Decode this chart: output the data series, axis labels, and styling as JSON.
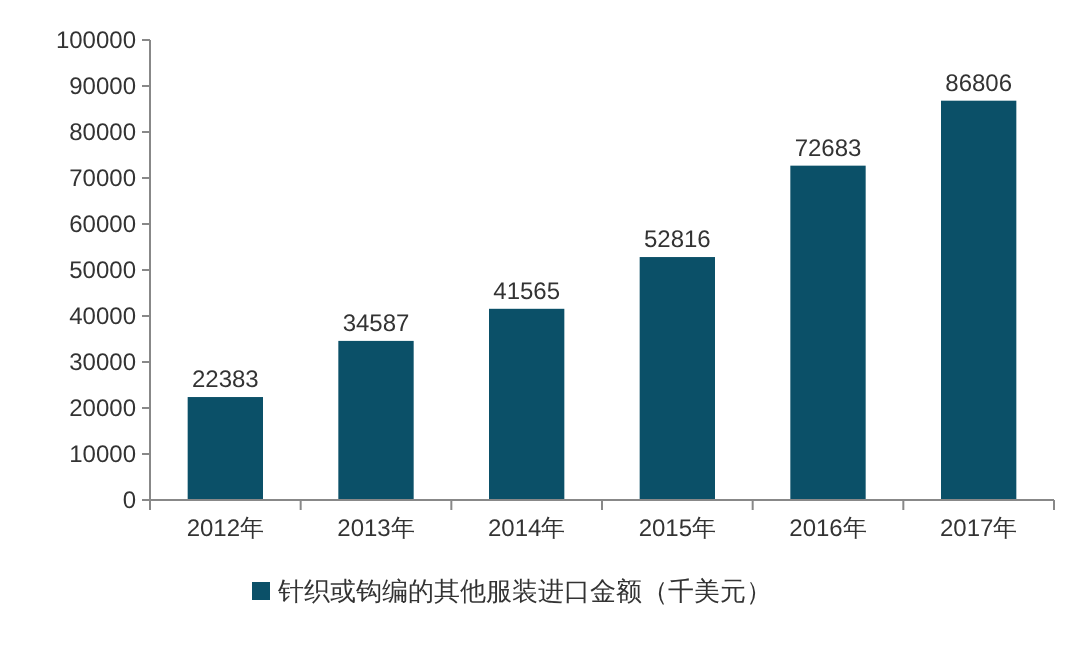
{
  "chart_data": {
    "type": "bar",
    "categories": [
      "2012年",
      "2013年",
      "2014年",
      "2015年",
      "2016年",
      "2017年"
    ],
    "series": [
      {
        "name": "针织或钩编的其他服装进口金额（千美元）",
        "color": "#0b5068",
        "values": [
          22383,
          34587,
          41565,
          52816,
          72683,
          86806
        ]
      }
    ],
    "ylim": [
      0,
      100000
    ],
    "yticks": [
      0,
      10000,
      20000,
      30000,
      40000,
      50000,
      60000,
      70000,
      80000,
      90000,
      100000
    ],
    "data_labels": true,
    "legend": "bottom"
  }
}
